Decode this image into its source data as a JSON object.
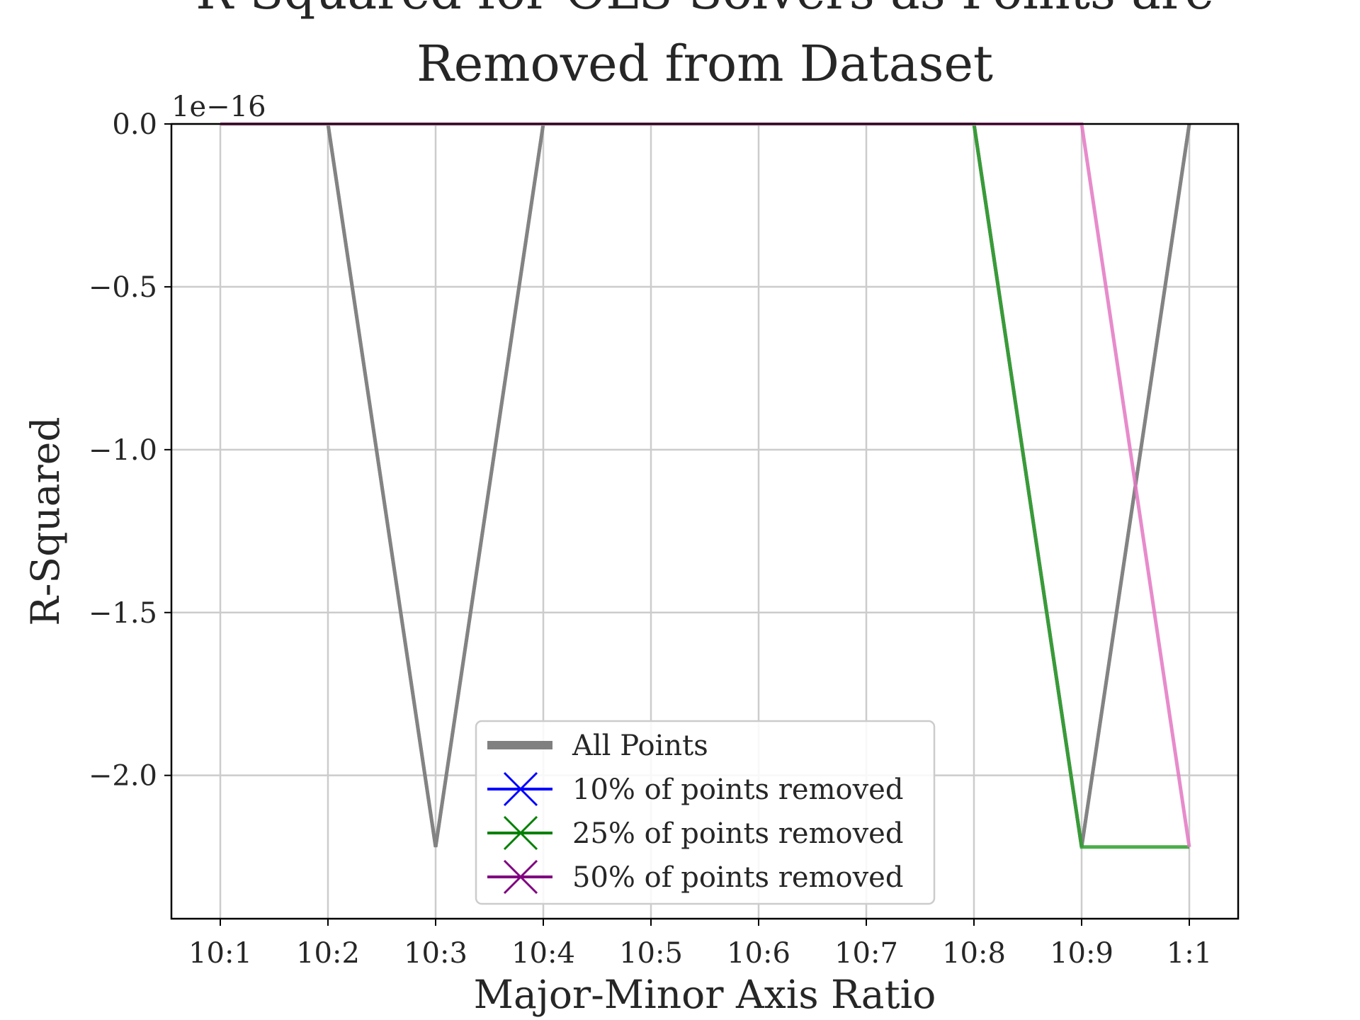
{
  "chart_data": {
    "type": "line",
    "title_line1": "R-Squared for OLS Solvers as Points are",
    "title_line2": "Removed from Dataset",
    "xlabel": "Major-Minor Axis Ratio",
    "ylabel": "R-Squared",
    "y_offset_text": "1e−16",
    "categories": [
      "10:1",
      "10:2",
      "10:3",
      "10:4",
      "10:5",
      "10:6",
      "10:7",
      "10:8",
      "10:9",
      "1:1"
    ],
    "ylim": [
      -2.44,
      0.0
    ],
    "yticks": [
      0.0,
      -0.5,
      -1.0,
      -1.5,
      -2.0
    ],
    "ytick_labels": [
      "0.0",
      "−0.5",
      "−1.0",
      "−1.5",
      "−2.0"
    ],
    "grid": true,
    "legend_position": "lower-center",
    "series": [
      {
        "name": "All Points",
        "color": "#808080",
        "values": [
          0,
          0,
          -2.22,
          0,
          0,
          0,
          0,
          0,
          -2.22,
          0
        ]
      },
      {
        "name": "",
        "color": "#808080",
        "values": [
          0,
          0,
          -2.22,
          0,
          0,
          0,
          0,
          0,
          -2.22,
          0
        ]
      },
      {
        "name": "",
        "color": "#2ca02c",
        "values": [
          0,
          0,
          0,
          0,
          0,
          0,
          0,
          0,
          -2.22,
          -2.22
        ]
      },
      {
        "name": "",
        "color": "#e377c2",
        "values": [
          0,
          0,
          0,
          0,
          0,
          0,
          0,
          0,
          0,
          -2.22
        ]
      }
    ],
    "legend": [
      {
        "label": "All Points",
        "color": "#808080",
        "marker": "line"
      },
      {
        "label": "10% of points removed",
        "color": "#0000ff",
        "marker": "x"
      },
      {
        "label": "25% of points removed",
        "color": "#008000",
        "marker": "x"
      },
      {
        "label": "50% of points removed",
        "color": "#800080",
        "marker": "x"
      }
    ]
  }
}
